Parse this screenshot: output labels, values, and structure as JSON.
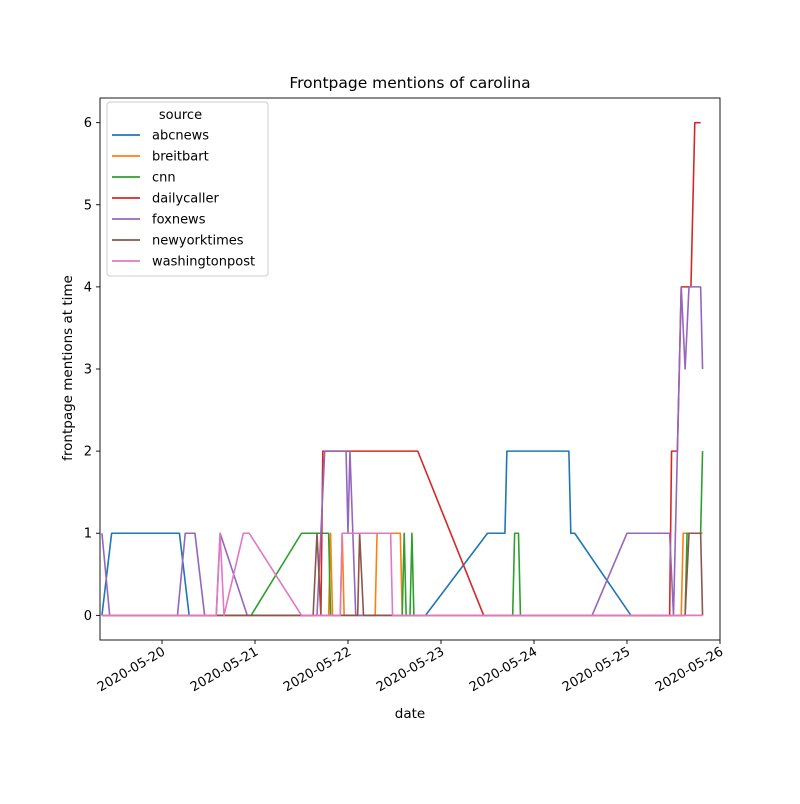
{
  "chart_data": {
    "type": "line",
    "title": "Frontpage mentions of carolina",
    "xlabel": "date",
    "ylabel": "frontpage mentions at time",
    "x_ticks": [
      "2020-05-20",
      "2020-05-21",
      "2020-05-22",
      "2020-05-23",
      "2020-05-24",
      "2020-05-25",
      "2020-05-26"
    ],
    "y_ticks": [
      0,
      1,
      2,
      3,
      4,
      5,
      6
    ],
    "xlim": [
      "2020-05-19 08:00",
      "2020-05-26 00:00"
    ],
    "ylim": [
      -0.3,
      6.3
    ],
    "grid": false,
    "legend_title": "source",
    "legend_position": "top-left",
    "series": [
      {
        "name": "abcnews",
        "color": "#1f77b4",
        "points": [
          [
            "2020-05-19 08:30",
            0
          ],
          [
            "2020-05-19 11:00",
            1
          ],
          [
            "2020-05-20 04:30",
            1
          ],
          [
            "2020-05-20 07:00",
            0
          ],
          [
            "2020-05-22 20:00",
            0
          ],
          [
            "2020-05-23 12:00",
            1
          ],
          [
            "2020-05-23 16:30",
            1
          ],
          [
            "2020-05-23 17:00",
            2
          ],
          [
            "2020-05-24 09:00",
            2
          ],
          [
            "2020-05-24 09:30",
            1
          ],
          [
            "2020-05-24 10:30",
            1
          ],
          [
            "2020-05-25 01:00",
            0
          ],
          [
            "2020-05-25 19:30",
            0
          ]
        ]
      },
      {
        "name": "breitbart",
        "color": "#ff7f0e",
        "points": [
          [
            "2020-05-19 08:30",
            0
          ],
          [
            "2020-05-21 19:00",
            0
          ],
          [
            "2020-05-21 19:30",
            1
          ],
          [
            "2020-05-21 20:00",
            0
          ],
          [
            "2020-05-21 22:00",
            0
          ],
          [
            "2020-05-21 22:30",
            1
          ],
          [
            "2020-05-21 23:00",
            0
          ],
          [
            "2020-05-22 07:00",
            0
          ],
          [
            "2020-05-22 07:30",
            1
          ],
          [
            "2020-05-22 13:30",
            1
          ],
          [
            "2020-05-22 14:00",
            0
          ],
          [
            "2020-05-25 14:00",
            0
          ],
          [
            "2020-05-25 14:30",
            1
          ],
          [
            "2020-05-25 19:30",
            1
          ]
        ]
      },
      {
        "name": "cnn",
        "color": "#2ca02c",
        "points": [
          [
            "2020-05-19 08:30",
            0
          ],
          [
            "2020-05-20 23:00",
            0
          ],
          [
            "2020-05-21 12:00",
            1
          ],
          [
            "2020-05-21 19:00",
            1
          ],
          [
            "2020-05-21 19:30",
            0
          ],
          [
            "2020-05-22 14:00",
            0
          ],
          [
            "2020-05-22 14:30",
            1
          ],
          [
            "2020-05-22 15:00",
            0
          ],
          [
            "2020-05-22 16:00",
            0
          ],
          [
            "2020-05-22 16:30",
            1
          ],
          [
            "2020-05-22 17:00",
            0
          ],
          [
            "2020-05-23 18:30",
            0
          ],
          [
            "2020-05-23 19:00",
            1
          ],
          [
            "2020-05-23 20:00",
            1
          ],
          [
            "2020-05-23 20:30",
            0
          ],
          [
            "2020-05-25 14:00",
            0
          ],
          [
            "2020-05-25 15:00",
            0
          ],
          [
            "2020-05-25 15:30",
            1
          ],
          [
            "2020-05-25 19:00",
            1
          ],
          [
            "2020-05-25 19:30",
            2
          ]
        ]
      },
      {
        "name": "dailycaller",
        "color": "#d62728",
        "points": [
          [
            "2020-05-19 08:30",
            0
          ],
          [
            "2020-05-21 17:00",
            0
          ],
          [
            "2020-05-21 17:30",
            2
          ],
          [
            "2020-05-22 18:00",
            2
          ],
          [
            "2020-05-23 11:00",
            0
          ],
          [
            "2020-05-25 11:00",
            0
          ],
          [
            "2020-05-25 11:30",
            2
          ],
          [
            "2020-05-25 13:00",
            2
          ],
          [
            "2020-05-25 14:00",
            4
          ],
          [
            "2020-05-25 16:30",
            4
          ],
          [
            "2020-05-25 17:30",
            6
          ],
          [
            "2020-05-25 19:00",
            6
          ]
        ]
      },
      {
        "name": "foxnews",
        "color": "#9467bd",
        "points": [
          [
            "2020-05-19 08:30",
            1
          ],
          [
            "2020-05-19 10:30",
            0
          ],
          [
            "2020-05-20 04:00",
            0
          ],
          [
            "2020-05-20 06:00",
            1
          ],
          [
            "2020-05-20 08:30",
            1
          ],
          [
            "2020-05-20 11:00",
            0
          ],
          [
            "2020-05-20 14:00",
            0
          ],
          [
            "2020-05-20 15:00",
            1
          ],
          [
            "2020-05-20 22:00",
            0
          ],
          [
            "2020-05-21 16:00",
            0
          ],
          [
            "2020-05-21 18:00",
            2
          ],
          [
            "2020-05-21 23:30",
            2
          ],
          [
            "2020-05-22 00:00",
            1
          ],
          [
            "2020-05-22 00:30",
            2
          ],
          [
            "2020-05-22 02:00",
            0
          ],
          [
            "2020-05-24 09:00",
            0
          ],
          [
            "2020-05-24 15:00",
            0
          ],
          [
            "2020-05-25 00:00",
            1
          ],
          [
            "2020-05-25 11:00",
            1
          ],
          [
            "2020-05-25 12:00",
            0
          ],
          [
            "2020-05-25 13:00",
            2
          ],
          [
            "2020-05-25 14:00",
            4
          ],
          [
            "2020-05-25 15:00",
            3
          ],
          [
            "2020-05-25 16:00",
            4
          ],
          [
            "2020-05-25 19:00",
            4
          ],
          [
            "2020-05-25 19:30",
            3
          ]
        ]
      },
      {
        "name": "newyorktimes",
        "color": "#8c564b",
        "points": [
          [
            "2020-05-19 08:30",
            0
          ],
          [
            "2020-05-20 08:00",
            0
          ],
          [
            "2020-05-20 18:00",
            0
          ],
          [
            "2020-05-21 15:00",
            0
          ],
          [
            "2020-05-21 16:00",
            1
          ],
          [
            "2020-05-21 17:00",
            0
          ],
          [
            "2020-05-22 02:30",
            0
          ],
          [
            "2020-05-22 03:00",
            1
          ],
          [
            "2020-05-22 04:00",
            0
          ],
          [
            "2020-05-25 15:00",
            0
          ],
          [
            "2020-05-25 16:00",
            1
          ],
          [
            "2020-05-25 19:00",
            1
          ],
          [
            "2020-05-25 19:30",
            0
          ]
        ]
      },
      {
        "name": "washingtonpost",
        "color": "#e377c2",
        "points": [
          [
            "2020-05-19 08:30",
            0
          ],
          [
            "2020-05-20 14:00",
            0
          ],
          [
            "2020-05-20 15:00",
            1
          ],
          [
            "2020-05-20 16:00",
            0
          ],
          [
            "2020-05-20 21:00",
            1
          ],
          [
            "2020-05-20 22:30",
            1
          ],
          [
            "2020-05-21 12:00",
            0
          ],
          [
            "2020-05-21 22:00",
            0
          ],
          [
            "2020-05-21 22:30",
            1
          ],
          [
            "2020-05-22 11:00",
            1
          ],
          [
            "2020-05-22 11:30",
            0
          ],
          [
            "2020-05-25 15:30",
            0
          ],
          [
            "2020-05-25 19:30",
            0
          ]
        ]
      }
    ]
  }
}
